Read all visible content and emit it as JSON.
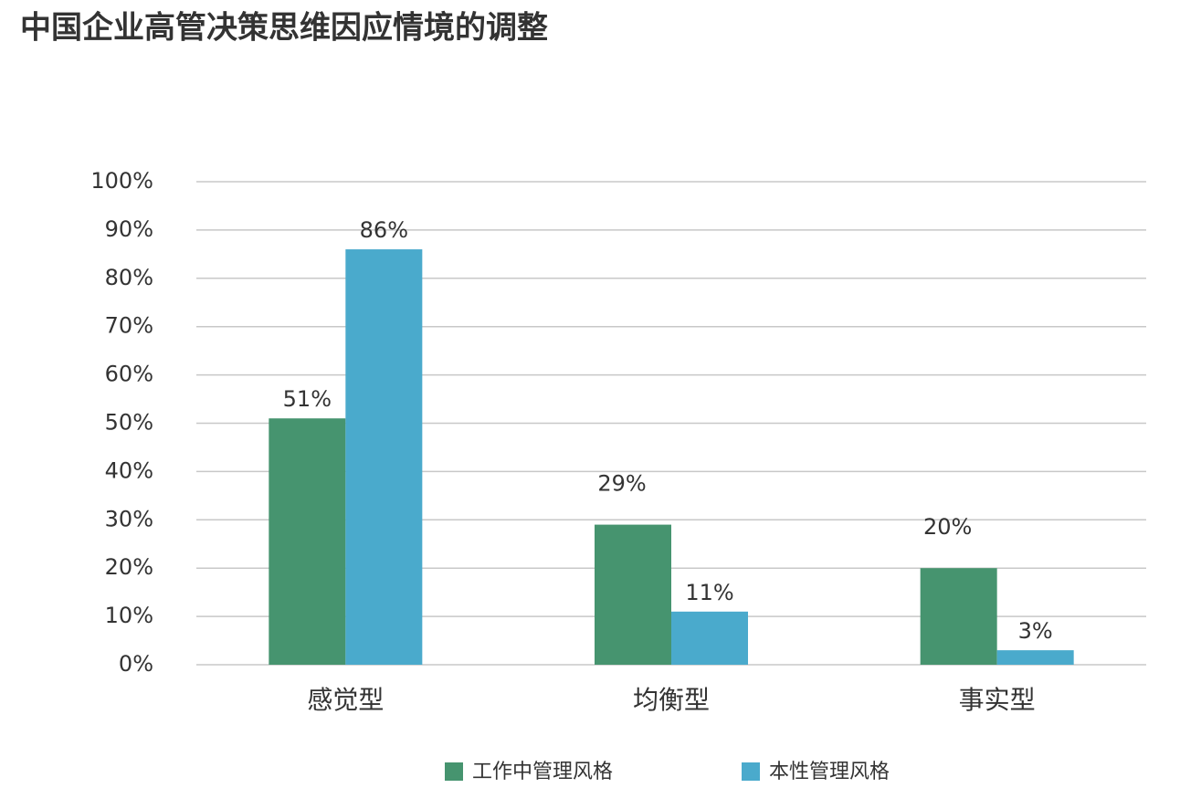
{
  "chart_data": {
    "type": "bar",
    "title": "中国企业高管决策思维因应情境的调整",
    "categories": [
      "感觉型",
      "均衡型",
      "事实型"
    ],
    "series": [
      {
        "name": "工作中管理风格",
        "color": "#46946f",
        "values": [
          51,
          29,
          20
        ],
        "value_labels": [
          "51%",
          "29%",
          "20%"
        ]
      },
      {
        "name": "本性管理风格",
        "color": "#4aaacc",
        "values": [
          86,
          11,
          3
        ],
        "value_labels": [
          "86%",
          "11%",
          "3%"
        ]
      }
    ],
    "ylim": [
      0,
      100
    ],
    "yticks": [
      {
        "value": 0,
        "label": "0%"
      },
      {
        "value": 10,
        "label": "10%"
      },
      {
        "value": 20,
        "label": "20%"
      },
      {
        "value": 30,
        "label": "30%"
      },
      {
        "value": 40,
        "label": "40%"
      },
      {
        "value": 50,
        "label": "50%"
      },
      {
        "value": 60,
        "label": "60%"
      },
      {
        "value": 70,
        "label": "70%"
      },
      {
        "value": 80,
        "label": "80%"
      },
      {
        "value": 90,
        "label": "90%"
      },
      {
        "value": 100,
        "label": "100%"
      }
    ],
    "grid": true,
    "legend": "bottom"
  }
}
